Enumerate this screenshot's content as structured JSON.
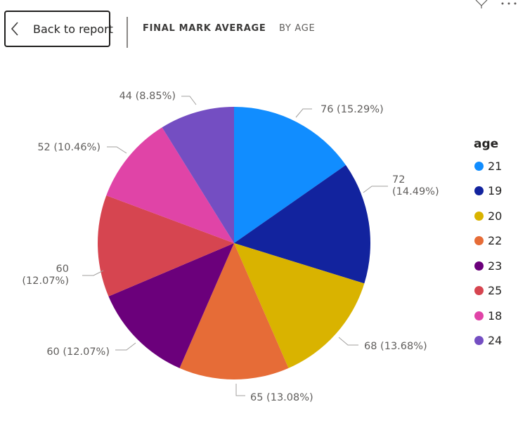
{
  "header": {
    "back_label": "Back to report",
    "title": "FINAL MARK AVERAGE",
    "subtitle": "BY AGE"
  },
  "icons": {
    "back": "chevron-left-icon",
    "filter": "filter-icon",
    "more": "more-options-icon"
  },
  "legend": {
    "title": "age",
    "items": [
      {
        "label": "21",
        "color": "#118DFF"
      },
      {
        "label": "19",
        "color": "#12239E"
      },
      {
        "label": "20",
        "color": "#D9B300"
      },
      {
        "label": "22",
        "color": "#E66C37"
      },
      {
        "label": "23",
        "color": "#6B007B"
      },
      {
        "label": "25",
        "color": "#D64550"
      },
      {
        "label": "18",
        "color": "#E044A7"
      },
      {
        "label": "24",
        "color": "#744EC2"
      }
    ]
  },
  "chart_data": {
    "type": "pie",
    "legend_title": "age",
    "legend_position": "right",
    "slices": [
      {
        "category": "21",
        "value": 76,
        "percent": "15.29%",
        "color": "#118DFF",
        "label_lines": [
          "76 (15.29%)"
        ]
      },
      {
        "category": "19",
        "value": 72,
        "percent": "14.49%",
        "color": "#12239E",
        "label_lines": [
          "72",
          "(14.49%)"
        ]
      },
      {
        "category": "20",
        "value": 68,
        "percent": "13.68%",
        "color": "#D9B300",
        "label_lines": [
          "68 (13.68%)"
        ]
      },
      {
        "category": "22",
        "value": 65,
        "percent": "13.08%",
        "color": "#E66C37",
        "label_lines": [
          "65 (13.08%)"
        ]
      },
      {
        "category": "23",
        "value": 60,
        "percent": "12.07%",
        "color": "#6B007B",
        "label_lines": [
          "60 (12.07%)"
        ]
      },
      {
        "category": "25",
        "value": 60,
        "percent": "12.07%",
        "color": "#D64550",
        "label_lines": [
          "60",
          "(12.07%)"
        ]
      },
      {
        "category": "18",
        "value": 52,
        "percent": "10.46%",
        "color": "#E044A7",
        "label_lines": [
          "52 (10.46%)"
        ]
      },
      {
        "category": "24",
        "value": 44,
        "percent": "8.85%",
        "color": "#744EC2",
        "label_lines": [
          "44 (8.85%)"
        ]
      }
    ]
  }
}
